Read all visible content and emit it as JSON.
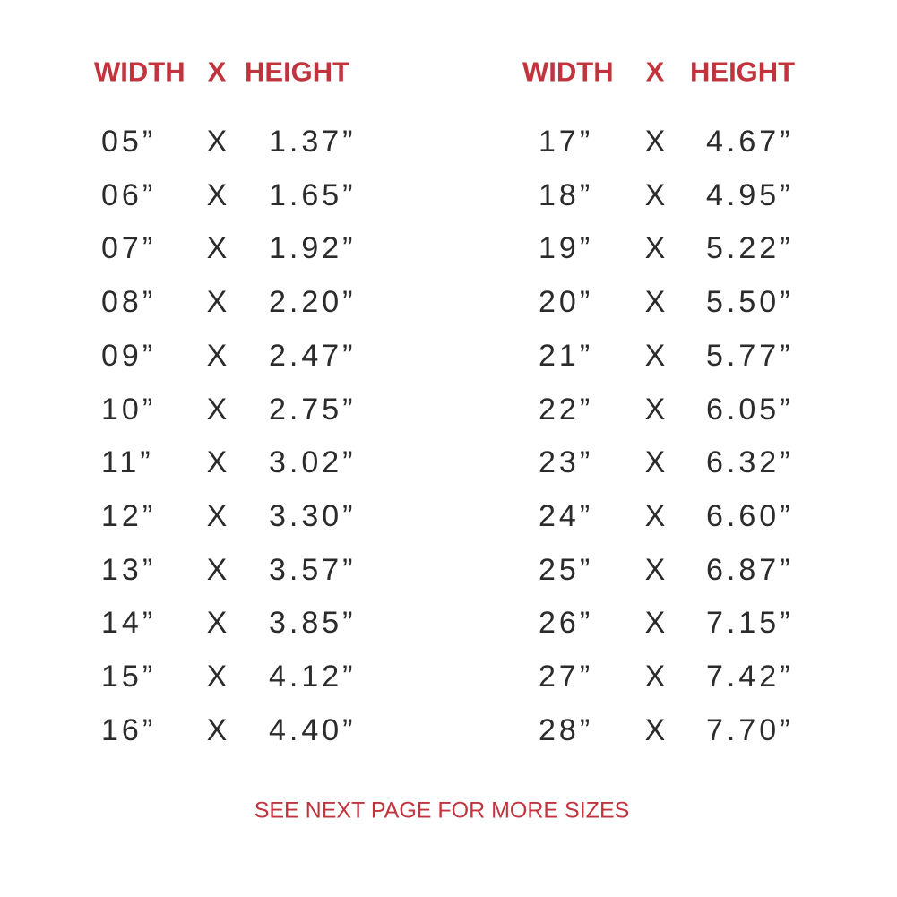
{
  "tables": [
    {
      "header": [
        "WIDTH",
        "X",
        "HEIGHT"
      ],
      "rows": [
        [
          "05”",
          "X",
          "1.37”"
        ],
        [
          "06”",
          "X",
          "1.65”"
        ],
        [
          "07”",
          "X",
          "1.92”"
        ],
        [
          "08”",
          "X",
          "2.20”"
        ],
        [
          "09”",
          "X",
          "2.47”"
        ],
        [
          "10”",
          "X",
          "2.75”"
        ],
        [
          "11”",
          "X",
          "3.02”"
        ],
        [
          "12”",
          "X",
          "3.30”"
        ],
        [
          "13”",
          "X",
          "3.57”"
        ],
        [
          "14”",
          "X",
          "3.85”"
        ],
        [
          "15”",
          "X",
          "4.12”"
        ],
        [
          "16”",
          "X",
          "4.40”"
        ]
      ]
    },
    {
      "header": [
        "WIDTH",
        "X",
        "HEIGHT"
      ],
      "rows": [
        [
          "17”",
          "X",
          "4.67”"
        ],
        [
          "18”",
          "X",
          "4.95”"
        ],
        [
          "19”",
          "X",
          "5.22”"
        ],
        [
          "20”",
          "X",
          "5.50”"
        ],
        [
          "21”",
          "X",
          "5.77”"
        ],
        [
          "22”",
          "X",
          "6.05”"
        ],
        [
          "23”",
          "X",
          "6.32”"
        ],
        [
          "24”",
          "X",
          "6.60”"
        ],
        [
          "25”",
          "X",
          "6.87”"
        ],
        [
          "26”",
          "X",
          "7.15”"
        ],
        [
          "27”",
          "X",
          "7.42”"
        ],
        [
          "28”",
          "X",
          "7.70”"
        ]
      ]
    }
  ],
  "footer": "SEE NEXT PAGE FOR MORE SIZES"
}
